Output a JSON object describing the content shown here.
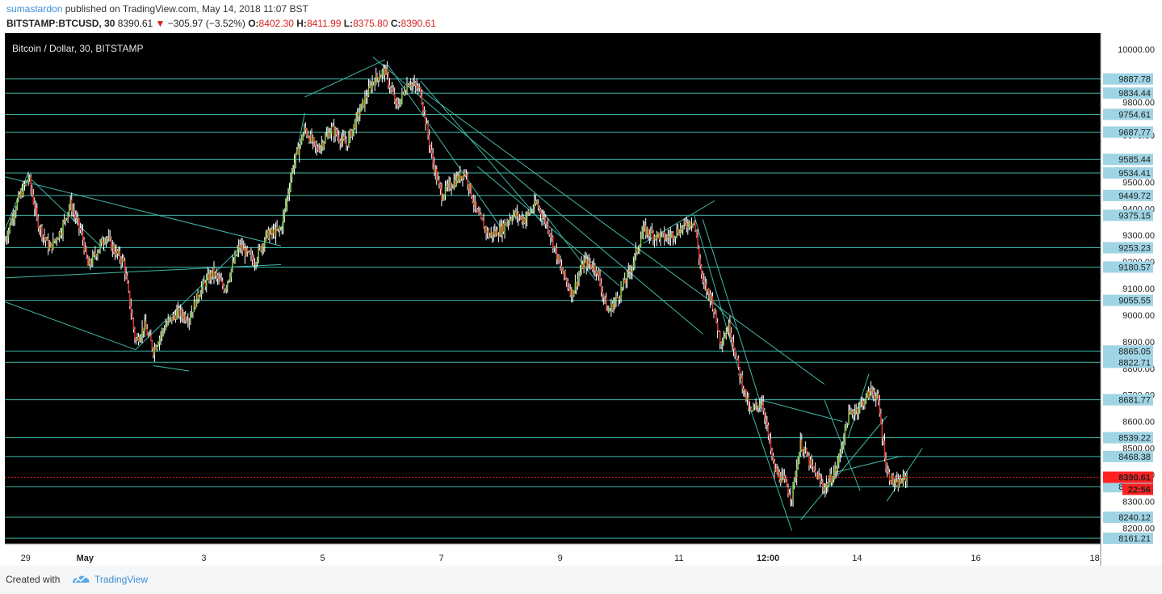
{
  "header": {
    "author": "sumastardon",
    "published_text": "published on TradingView.com, May 14, 2018 11:07 BST",
    "symbol": "BITSTAMP:BTCUSD, 30",
    "price": "8390.61",
    "arrow": "▼",
    "change": "−305.97 (−3.52%)",
    "o_label": "O:",
    "o_value": "8402.30",
    "h_label": "H:",
    "h_value": "8411.99",
    "l_label": "L:",
    "l_value": "8375.80",
    "c_label": "C:",
    "c_value": "8390.61"
  },
  "chart_title": "Bitcoin / Dollar, 30, BITSTAMP",
  "colors": {
    "background": "#000000",
    "up_candle": "#7fd13b",
    "down_candle": "#e03030",
    "wick": "#ffffff",
    "lines": "#3fb8a8",
    "label_bg": "#9fd4e4",
    "current_price_bg": "#ff2020"
  },
  "chart_data": {
    "type": "candlestick",
    "title": "Bitcoin / Dollar, 30, BITSTAMP",
    "y_ticks": [
      "10000.00",
      "9800.00",
      "9500.00",
      "9300.00",
      "9100.00",
      "9000.00",
      "8900.00",
      "8600.00",
      "8500.00",
      "8300.00",
      "8200.00"
    ],
    "y_tick_values": [
      10000,
      9800,
      9500,
      9300,
      9100,
      9000,
      8900,
      8600,
      8500,
      8300,
      8200
    ],
    "ylim": [
      8140,
      10060
    ],
    "x_ticks": [
      "29",
      "May",
      "3",
      "5",
      "7",
      "9",
      "11",
      "12:00",
      "14",
      "16",
      "18"
    ],
    "x_tick_days": [
      -1,
      0,
      2,
      4,
      6,
      8,
      10,
      11.5,
      13,
      15,
      17
    ],
    "xlim": [
      -1.35,
      17.1
    ],
    "horizontal_levels": [
      "9887.78",
      "9834.44",
      "9754.61",
      "9687.77",
      "9585.44",
      "9534.41",
      "9449.72",
      "9375.15",
      "9253.23",
      "9180.57",
      "9055.55",
      "8865.05",
      "8822.71",
      "8681.77",
      "8539.22",
      "8468.38",
      "8355.00",
      "8240.12",
      "8161.21"
    ],
    "hidden_level_labels": [
      "9675.00",
      "9400.00",
      "9200.00",
      "8800.00",
      "8700.00",
      "8400.00"
    ],
    "current_price": "8390.61",
    "countdown": "22:56",
    "path_points": [
      [
        -1.35,
        9280
      ],
      [
        -1.15,
        9420
      ],
      [
        -0.95,
        9520
      ],
      [
        -0.8,
        9350
      ],
      [
        -0.6,
        9250
      ],
      [
        -0.4,
        9320
      ],
      [
        -0.25,
        9420
      ],
      [
        -0.05,
        9300
      ],
      [
        0.05,
        9180
      ],
      [
        0.2,
        9240
      ],
      [
        0.35,
        9300
      ],
      [
        0.5,
        9240
      ],
      [
        0.65,
        9200
      ],
      [
        0.75,
        9050
      ],
      [
        0.85,
        8900
      ],
      [
        1.0,
        8960
      ],
      [
        1.15,
        8870
      ],
      [
        1.35,
        8960
      ],
      [
        1.55,
        9010
      ],
      [
        1.75,
        8990
      ],
      [
        1.95,
        9100
      ],
      [
        2.15,
        9160
      ],
      [
        2.35,
        9100
      ],
      [
        2.6,
        9260
      ],
      [
        2.85,
        9200
      ],
      [
        3.05,
        9300
      ],
      [
        3.3,
        9320
      ],
      [
        3.5,
        9560
      ],
      [
        3.7,
        9700
      ],
      [
        3.9,
        9620
      ],
      [
        4.15,
        9700
      ],
      [
        4.4,
        9640
      ],
      [
        4.65,
        9780
      ],
      [
        4.85,
        9880
      ],
      [
        5.05,
        9920
      ],
      [
        5.25,
        9780
      ],
      [
        5.45,
        9880
      ],
      [
        5.65,
        9840
      ],
      [
        5.85,
        9580
      ],
      [
        6.0,
        9450
      ],
      [
        6.2,
        9500
      ],
      [
        6.4,
        9540
      ],
      [
        6.6,
        9380
      ],
      [
        6.8,
        9300
      ],
      [
        7.0,
        9320
      ],
      [
        7.2,
        9380
      ],
      [
        7.4,
        9360
      ],
      [
        7.6,
        9420
      ],
      [
        7.8,
        9330
      ],
      [
        8.0,
        9180
      ],
      [
        8.2,
        9080
      ],
      [
        8.4,
        9200
      ],
      [
        8.6,
        9180
      ],
      [
        8.8,
        9010
      ],
      [
        9.0,
        9080
      ],
      [
        9.2,
        9180
      ],
      [
        9.4,
        9320
      ],
      [
        9.6,
        9300
      ],
      [
        9.8,
        9290
      ],
      [
        10.0,
        9320
      ],
      [
        10.25,
        9360
      ],
      [
        10.4,
        9120
      ],
      [
        10.55,
        9060
      ],
      [
        10.7,
        8900
      ],
      [
        10.85,
        8960
      ],
      [
        11.0,
        8800
      ],
      [
        11.2,
        8630
      ],
      [
        11.4,
        8680
      ],
      [
        11.6,
        8420
      ],
      [
        11.75,
        8380
      ],
      [
        11.9,
        8320
      ],
      [
        12.05,
        8520
      ],
      [
        12.25,
        8420
      ],
      [
        12.45,
        8350
      ],
      [
        12.65,
        8420
      ],
      [
        12.85,
        8620
      ],
      [
        13.05,
        8660
      ],
      [
        13.25,
        8720
      ],
      [
        13.35,
        8680
      ],
      [
        13.5,
        8410
      ],
      [
        13.65,
        8360
      ],
      [
        13.85,
        8395
      ]
    ],
    "trend_lines": [
      [
        [
          -1.35,
          9520
        ],
        [
          3.3,
          9260
        ]
      ],
      [
        [
          -1.35,
          9140
        ],
        [
          3.3,
          9190
        ]
      ],
      [
        [
          -1.35,
          9050
        ],
        [
          0.85,
          8870
        ]
      ],
      [
        [
          -0.95,
          9520
        ],
        [
          0.35,
          9240
        ]
      ],
      [
        [
          -1.35,
          9320
        ],
        [
          -0.95,
          9540
        ]
      ],
      [
        [
          0.85,
          8870
        ],
        [
          2.6,
          9250
        ]
      ],
      [
        [
          1.15,
          8810
        ],
        [
          1.75,
          8790
        ]
      ],
      [
        [
          3.3,
          9320
        ],
        [
          3.7,
          9760
        ]
      ],
      [
        [
          3.7,
          9820
        ],
        [
          5.05,
          9960
        ]
      ],
      [
        [
          4.85,
          9970
        ],
        [
          10.4,
          8930
        ]
      ],
      [
        [
          5.45,
          9880
        ],
        [
          12.45,
          8740
        ]
      ],
      [
        [
          5.1,
          9940
        ],
        [
          7.0,
          9330
        ]
      ],
      [
        [
          6.6,
          9560
        ],
        [
          9.0,
          9110
        ]
      ],
      [
        [
          5.65,
          9880
        ],
        [
          7.8,
          9320
        ]
      ],
      [
        [
          7.6,
          9420
        ],
        [
          8.6,
          9130
        ]
      ],
      [
        [
          9.4,
          9270
        ],
        [
          10.6,
          9430
        ]
      ],
      [
        [
          10.25,
          9380
        ],
        [
          11.0,
          8800
        ]
      ],
      [
        [
          10.4,
          9360
        ],
        [
          11.5,
          8580
        ]
      ],
      [
        [
          10.55,
          9060
        ],
        [
          11.0,
          8940
        ]
      ],
      [
        [
          11.0,
          8780
        ],
        [
          11.9,
          8190
        ]
      ],
      [
        [
          11.4,
          8680
        ],
        [
          12.75,
          8600
        ]
      ],
      [
        [
          12.05,
          8230
        ],
        [
          13.5,
          8620
        ]
      ],
      [
        [
          12.45,
          8680
        ],
        [
          13.05,
          8340
        ]
      ],
      [
        [
          12.85,
          8540
        ],
        [
          13.2,
          8780
        ]
      ],
      [
        [
          13.5,
          8300
        ],
        [
          14.1,
          8500
        ]
      ],
      [
        [
          12.65,
          8410
        ],
        [
          13.75,
          8470
        ]
      ]
    ]
  },
  "footer": {
    "created_with": "Created with",
    "brand": "TradingView"
  }
}
